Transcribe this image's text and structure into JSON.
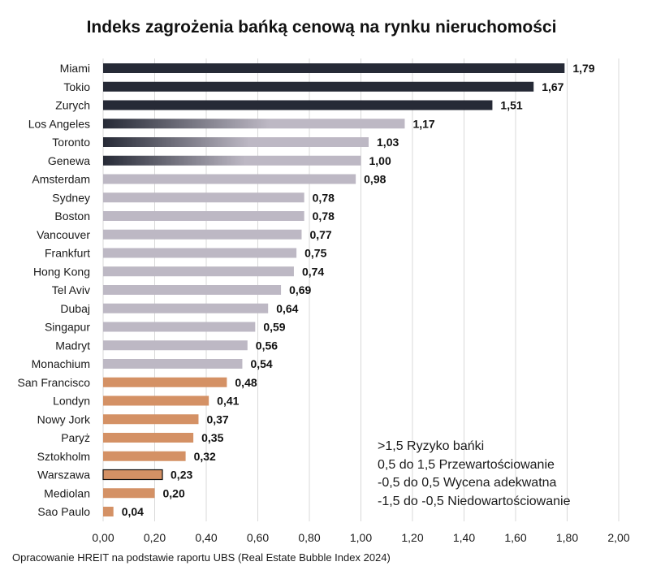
{
  "colors": {
    "dark": "#262a36",
    "light": "#bdb8c4",
    "orange": "#d49165",
    "gradient_end": "#bdb8c4",
    "grid": "#d9d9d9"
  },
  "legend": [
    ">1,5 Ryzyko bańki",
    "0,5 do 1,5 Przewartościowanie",
    "-0,5 do 0,5 Wycena adekwatna",
    "-1,5 do -0,5 Niedowartościowanie"
  ],
  "source": "Opracowanie HREIT na podstawie raportu UBS (Real Estate Bubble Index 2024)",
  "chart_data": {
    "type": "bar",
    "orientation": "horizontal",
    "title": "Indeks zagrożenia bańką cenową na rynku nieruchomości",
    "xlabel": "",
    "ylabel": "",
    "xlim": [
      0,
      2
    ],
    "grid": true,
    "x_ticks": [
      "0,00",
      "0,20",
      "0,40",
      "0,60",
      "0,80",
      "1,00",
      "1,20",
      "1,40",
      "1,60",
      "1,80",
      "2,00"
    ],
    "categories": [
      "Miami",
      "Tokio",
      "Zurych",
      "Los Angeles",
      "Toronto",
      "Genewa",
      "Amsterdam",
      "Sydney",
      "Boston",
      "Vancouver",
      "Frankfurt",
      "Hong Kong",
      "Tel Aviv",
      "Dubaj",
      "Singapur",
      "Madryt",
      "Monachium",
      "San Francisco",
      "Londyn",
      "Nowy Jork",
      "Paryż",
      "Sztokholm",
      "Warszawa",
      "Mediolan",
      "Sao Paulo"
    ],
    "values": [
      1.79,
      1.67,
      1.51,
      1.17,
      1.03,
      1.0,
      0.98,
      0.78,
      0.78,
      0.77,
      0.75,
      0.74,
      0.69,
      0.64,
      0.59,
      0.56,
      0.54,
      0.48,
      0.41,
      0.37,
      0.35,
      0.32,
      0.23,
      0.2,
      0.04
    ],
    "value_labels": [
      "1,79",
      "1,67",
      "1,51",
      "1,17",
      "1,03",
      "1,00",
      "0,98",
      "0,78",
      "0,78",
      "0,77",
      "0,75",
      "0,74",
      "0,69",
      "0,64",
      "0,59",
      "0,56",
      "0,54",
      "0,48",
      "0,41",
      "0,37",
      "0,35",
      "0,32",
      "0,23",
      "0,20",
      "0,04"
    ],
    "bar_styles": [
      "dark",
      "dark",
      "dark",
      "gradient",
      "gradient",
      "gradient",
      "light",
      "light",
      "light",
      "light",
      "light",
      "light",
      "light",
      "light",
      "light",
      "light",
      "light",
      "orange",
      "orange",
      "orange",
      "orange",
      "orange",
      "orange-outlined",
      "orange",
      "orange"
    ]
  }
}
